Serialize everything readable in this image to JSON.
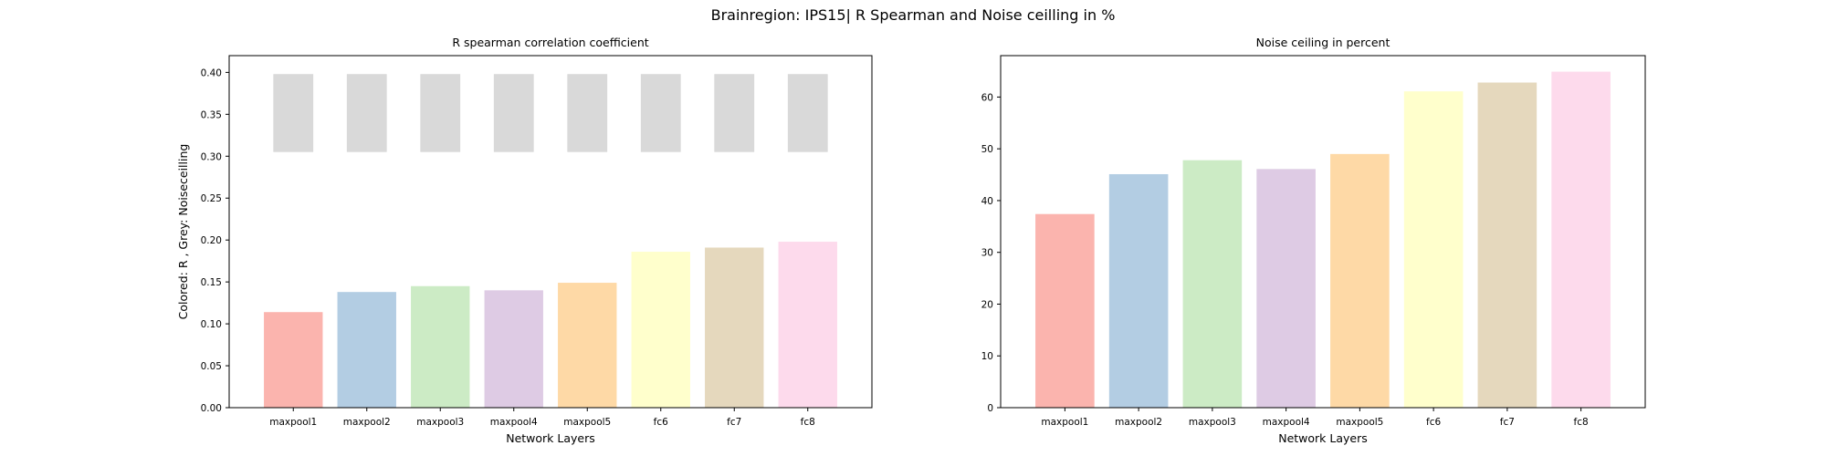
{
  "figure": {
    "suptitle": "Brainregion: IPS15| R Spearman and Noise ceilling in %"
  },
  "chart_data": [
    {
      "type": "bar",
      "title": "R spearman correlation coefficient",
      "xlabel": "Network Layers",
      "ylabel": "Colored: R , Grey: Noiseceilling",
      "categories": [
        "maxpool1",
        "maxpool2",
        "maxpool3",
        "maxpool4",
        "maxpool5",
        "fc6",
        "fc7",
        "fc8"
      ],
      "colors": [
        "#fbb4ae",
        "#b3cde3",
        "#ccebc5",
        "#decbe4",
        "#fed9a6",
        "#ffffcc",
        "#e5d8bd",
        "#fddaec"
      ],
      "series": [
        {
          "values": [
            0.114,
            0.138,
            0.145,
            0.14,
            0.149,
            0.186,
            0.191,
            0.198
          ]
        },
        {
          "range_low": 0.305,
          "range_high": 0.398,
          "color": "#d9d9d9"
        }
      ],
      "ylim": [
        0,
        0.42
      ],
      "yticks": [
        "0.00",
        "0.05",
        "0.10",
        "0.15",
        "0.20",
        "0.25",
        "0.30",
        "0.35",
        "0.40"
      ],
      "grid": false
    },
    {
      "type": "bar",
      "title": "Noise ceiling in percent",
      "xlabel": "Network Layers",
      "ylabel": "",
      "categories": [
        "maxpool1",
        "maxpool2",
        "maxpool3",
        "maxpool4",
        "maxpool5",
        "fc6",
        "fc7",
        "fc8"
      ],
      "colors": [
        "#fbb4ae",
        "#b3cde3",
        "#ccebc5",
        "#decbe4",
        "#fed9a6",
        "#ffffcc",
        "#e5d8bd",
        "#fddaec"
      ],
      "values": [
        37.4,
        45.1,
        47.8,
        46.1,
        49.0,
        61.1,
        62.8,
        64.9
      ],
      "ylim": [
        0,
        68
      ],
      "yticks": [
        "0",
        "10",
        "20",
        "30",
        "40",
        "50",
        "60"
      ],
      "grid": false
    }
  ]
}
